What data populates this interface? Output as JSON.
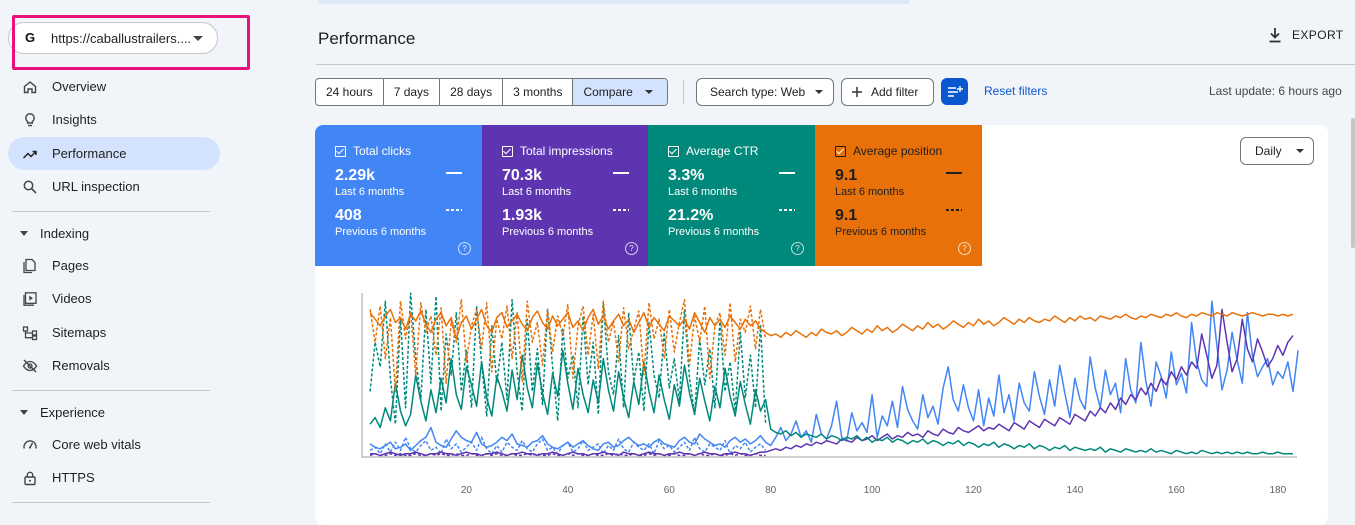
{
  "property": {
    "url": "https://caballustrailers....",
    "logo": "G"
  },
  "sidebar": {
    "items": [
      {
        "label": "Overview",
        "icon": "home-icon"
      },
      {
        "label": "Insights",
        "icon": "lightbulb-icon"
      },
      {
        "label": "Performance",
        "icon": "trending-up-icon",
        "active": true
      },
      {
        "label": "URL inspection",
        "icon": "search-icon"
      }
    ],
    "indexing": {
      "label": "Indexing",
      "items": [
        {
          "label": "Pages",
          "icon": "pages-icon"
        },
        {
          "label": "Videos",
          "icon": "video-icon"
        },
        {
          "label": "Sitemaps",
          "icon": "sitemap-icon"
        },
        {
          "label": "Removals",
          "icon": "eye-off-icon"
        }
      ]
    },
    "experience": {
      "label": "Experience",
      "items": [
        {
          "label": "Core web vitals",
          "icon": "gauge-icon"
        },
        {
          "label": "HTTPS",
          "icon": "lock-icon"
        }
      ]
    }
  },
  "header": {
    "title": "Performance",
    "export_label": "EXPORT"
  },
  "toolbar": {
    "ranges": [
      "24 hours",
      "7 days",
      "28 days",
      "3 months"
    ],
    "compare_label": "Compare",
    "search_type": "Search type: Web",
    "add_filter": "Add filter",
    "reset_filters": "Reset filters",
    "last_update": "Last update: 6 hours ago"
  },
  "metrics": [
    {
      "label": "Total clicks",
      "current": "2.29k",
      "current_period": "Last 6 months",
      "previous": "408",
      "previous_period": "Previous 6 months",
      "color": "#4285f4"
    },
    {
      "label": "Total impressions",
      "current": "70.3k",
      "current_period": "Last 6 months",
      "previous": "1.93k",
      "previous_period": "Previous 6 months",
      "color": "#5e35b1"
    },
    {
      "label": "Average CTR",
      "current": "3.3%",
      "current_period": "Last 6 months",
      "previous": "21.2%",
      "previous_period": "Previous 6 months",
      "color": "#00897b"
    },
    {
      "label": "Average position",
      "current": "9.1",
      "current_period": "Last 6 months",
      "previous": "9.1",
      "previous_period": "Previous 6 months",
      "color": "#e8710a"
    }
  ],
  "granularity": "Daily",
  "chart_data": {
    "type": "line",
    "x_ticks": [
      20,
      40,
      60,
      80,
      100,
      120,
      140,
      160,
      180
    ],
    "xlim": [
      0,
      183
    ],
    "grid": false,
    "series": [
      {
        "color": "#4285f4",
        "style": "solid",
        "values": [
          8,
          6,
          5,
          7,
          9,
          5,
          6,
          8,
          4,
          7,
          10,
          12,
          18,
          9,
          7,
          6,
          11,
          16,
          12,
          10,
          9,
          15,
          8,
          6,
          7,
          9,
          12,
          10,
          14,
          8,
          7,
          6,
          9,
          10,
          13,
          8,
          6,
          5,
          7,
          9,
          6,
          8,
          10,
          7,
          5,
          4,
          8,
          9,
          6,
          7,
          10,
          12,
          9,
          7,
          8,
          6,
          9,
          11,
          8,
          7,
          6,
          10,
          12,
          9,
          8,
          14,
          11,
          9,
          7,
          8,
          6,
          10,
          12,
          9,
          11,
          8,
          10,
          13,
          9,
          7,
          12,
          18,
          10,
          14,
          22,
          12,
          16,
          9,
          26,
          14,
          11,
          19,
          34,
          12,
          10,
          27,
          16,
          21,
          15,
          38,
          12,
          25,
          19,
          34,
          18,
          43,
          29,
          22,
          17,
          38,
          24,
          31,
          20,
          42,
          55,
          35,
          28,
          44,
          30,
          22,
          41,
          19,
          36,
          25,
          50,
          27,
          38,
          22,
          45,
          33,
          28,
          52,
          37,
          26,
          47,
          31,
          56,
          39,
          24,
          48,
          35,
          29,
          61,
          42,
          30,
          53,
          38,
          45,
          27,
          60,
          41,
          33,
          70,
          46,
          31,
          58,
          49,
          36,
          64,
          44,
          51,
          39,
          82,
          58,
          47,
          43,
          95,
          68,
          41,
          53,
          76,
          59,
          45,
          88,
          62,
          49,
          55,
          60,
          44,
          52,
          48,
          58,
          40,
          65
        ]
      },
      {
        "color": "#4285f4",
        "style": "dashed",
        "values": [
          4,
          6,
          2,
          8,
          3,
          9,
          4,
          12,
          5,
          3,
          7,
          10,
          4,
          6,
          2,
          11,
          5,
          8,
          3,
          6,
          9,
          4,
          12,
          5,
          2,
          7,
          3,
          9,
          6,
          4,
          10,
          5,
          3,
          8,
          11,
          4,
          6,
          2,
          7,
          9,
          3,
          5,
          10,
          4,
          6,
          8,
          2,
          7,
          4,
          11,
          5,
          3,
          9,
          6,
          4,
          8,
          2,
          10,
          5,
          7,
          3,
          6,
          9,
          4,
          12,
          5,
          3,
          8,
          6,
          4,
          10,
          2,
          7,
          5,
          9,
          3,
          6,
          8,
          4
        ]
      },
      {
        "color": "#5e35b1",
        "style": "solid",
        "values": [
          2,
          2,
          1,
          2,
          3,
          2,
          1,
          2,
          2,
          3,
          2,
          1,
          2,
          2,
          3,
          2,
          2,
          1,
          2,
          3,
          2,
          2,
          1,
          2,
          2,
          3,
          2,
          1,
          2,
          2,
          3,
          2,
          2,
          1,
          2,
          2,
          3,
          2,
          1,
          2,
          3,
          2,
          2,
          1,
          2,
          2,
          3,
          2,
          2,
          1,
          3,
          2,
          2,
          1,
          2,
          3,
          2,
          2,
          1,
          2,
          2,
          3,
          2,
          2,
          1,
          2,
          3,
          2,
          2,
          1,
          2,
          2,
          3,
          2,
          2,
          1,
          2,
          3,
          3,
          4,
          5,
          4,
          6,
          5,
          7,
          6,
          8,
          7,
          9,
          8,
          10,
          9,
          8,
          11,
          10,
          9,
          12,
          10,
          11,
          13,
          10,
          12,
          14,
          11,
          13,
          12,
          15,
          13,
          14,
          12,
          16,
          14,
          13,
          17,
          15,
          14,
          18,
          16,
          15,
          17,
          19,
          16,
          18,
          17,
          20,
          18,
          16,
          21,
          19,
          17,
          22,
          20,
          18,
          23,
          21,
          19,
          24,
          22,
          20,
          26,
          24,
          22,
          28,
          25,
          30,
          27,
          33,
          29,
          36,
          32,
          38,
          35,
          42,
          38,
          45,
          40,
          48,
          44,
          52,
          47,
          55,
          50,
          58,
          54,
          75,
          62,
          48,
          56,
          90,
          70,
          52,
          60,
          84,
          66,
          58,
          72,
          64,
          55,
          60,
          68,
          62,
          70,
          74
        ]
      },
      {
        "color": "#5e35b1",
        "style": "dashed",
        "values": [
          1,
          2,
          1,
          1,
          2,
          1,
          2,
          1,
          1,
          2,
          1,
          1,
          2,
          1,
          2,
          1,
          1,
          2,
          1,
          1,
          2,
          1,
          1,
          2,
          1,
          2,
          1,
          1,
          2,
          1,
          1,
          2,
          1,
          2,
          1,
          1,
          2,
          1,
          1,
          2,
          1,
          2,
          1,
          1,
          2,
          1,
          1,
          2,
          1,
          2,
          1,
          1,
          2,
          1,
          1,
          2,
          1,
          2,
          1,
          1,
          2,
          1,
          1,
          2,
          1,
          2,
          1,
          1,
          2,
          1,
          1,
          2,
          1,
          2,
          1,
          1,
          2,
          1,
          1
        ]
      },
      {
        "color": "#00897b",
        "style": "solid",
        "values": [
          20,
          24,
          18,
          30,
          22,
          45,
          28,
          19,
          26,
          50,
          34,
          22,
          41,
          27,
          48,
          33,
          60,
          38,
          29,
          55,
          44,
          31,
          58,
          36,
          25,
          49,
          40,
          28,
          53,
          35,
          62,
          42,
          30,
          57,
          39,
          26,
          51,
          37,
          65,
          45,
          29,
          54,
          38,
          27,
          47,
          33,
          60,
          41,
          28,
          52,
          36,
          24,
          46,
          32,
          58,
          40,
          27,
          50,
          35,
          23,
          44,
          31,
          56,
          39,
          26,
          48,
          34,
          22,
          43,
          30,
          54,
          37,
          25,
          46,
          32,
          20,
          41,
          28,
          35,
          17,
          15,
          14,
          16,
          13,
          15,
          12,
          14,
          13,
          12,
          14,
          11,
          13,
          12,
          10,
          12,
          11,
          13,
          10,
          12,
          9,
          11,
          10,
          12,
          9,
          11,
          10,
          8,
          10,
          9,
          11,
          8,
          10,
          9,
          7,
          9,
          8,
          10,
          7,
          9,
          8,
          6,
          8,
          7,
          9,
          6,
          8,
          7,
          5,
          7,
          6,
          8,
          5,
          7,
          6,
          4,
          6,
          5,
          7,
          4,
          6,
          5,
          4,
          5,
          4,
          6,
          3,
          5,
          4,
          3,
          5,
          4,
          3,
          4,
          3,
          5,
          3,
          4,
          3,
          2,
          4,
          3,
          2,
          3,
          2,
          4,
          3,
          2,
          3,
          2,
          3,
          2,
          3,
          2,
          3,
          2,
          2,
          3,
          2,
          2,
          3,
          2,
          2,
          2
        ]
      },
      {
        "color": "#00897b",
        "style": "dashed",
        "values": [
          40,
          70,
          55,
          95,
          48,
          20,
          85,
          30,
          100,
          60,
          35,
          90,
          45,
          98,
          28,
          75,
          50,
          88,
          40,
          65,
          30,
          92,
          58,
          25,
          80,
          45,
          70,
          35,
          96,
          52,
          28,
          84,
          40,
          66,
          32,
          90,
          55,
          22,
          78,
          48,
          62,
          30,
          86,
          44,
          70,
          26,
          94,
          52,
          38,
          74,
          30,
          88,
          46,
          64,
          28,
          82,
          50,
          36,
          76,
          42,
          60,
          34,
          90,
          48,
          26,
          72,
          44,
          66,
          30,
          84,
          40,
          58,
          28,
          76,
          36,
          62,
          30,
          80,
          20
        ]
      },
      {
        "color": "#e8710a",
        "style": "solid",
        "values": [
          88,
          84,
          80,
          86,
          90,
          82,
          85,
          78,
          87,
          83,
          89,
          81,
          76,
          84,
          88,
          80,
          85,
          72,
          82,
          86,
          78,
          84,
          90,
          80,
          76,
          85,
          88,
          79,
          83,
          87,
          81,
          77,
          85,
          89,
          82,
          78,
          86,
          80,
          84,
          88,
          79,
          83,
          77,
          85,
          90,
          81,
          86,
          78,
          83,
          87,
          80,
          84,
          76,
          82,
          88,
          79,
          85,
          81,
          77,
          86,
          83,
          80,
          84,
          78,
          88,
          82,
          76,
          85,
          80,
          84,
          79,
          86,
          82,
          78,
          84,
          80,
          83,
          78,
          76,
          74,
          75,
          73,
          76,
          74,
          77,
          75,
          73,
          76,
          74,
          78,
          76,
          75,
          77,
          74,
          76,
          79,
          77,
          75,
          78,
          76,
          80,
          77,
          79,
          76,
          78,
          81,
          79,
          77,
          80,
          78,
          82,
          79,
          81,
          78,
          80,
          83,
          81,
          79,
          82,
          80,
          84,
          81,
          83,
          80,
          82,
          85,
          83,
          81,
          84,
          82,
          85,
          83,
          82,
          84,
          83,
          86,
          84,
          82,
          85,
          83,
          86,
          84,
          85,
          83,
          86,
          85,
          84,
          86,
          85,
          87,
          85,
          84,
          86,
          85,
          87,
          86,
          85,
          87,
          86,
          88,
          86,
          85,
          87,
          86,
          88,
          87,
          86,
          88,
          87,
          86,
          88,
          87,
          86,
          87,
          88,
          87,
          86,
          87,
          87,
          86,
          87,
          86,
          87
        ]
      },
      {
        "color": "#e8710a",
        "style": "dashed",
        "values": [
          90,
          70,
          92,
          60,
          85,
          40,
          95,
          72,
          88,
          50,
          94,
          76,
          86,
          62,
          91,
          45,
          83,
          70,
          96,
          58,
          80,
          90,
          66,
          94,
          52,
          84,
          72,
          92,
          60,
          88,
          46,
          95,
          70,
          82,
          56,
          90,
          64,
          86,
          74,
          93,
          48,
          80,
          92,
          62,
          87,
          54,
          95,
          70,
          83,
          58,
          91,
          66,
          78,
          89,
          50,
          94,
          72,
          84,
          60,
          90,
          64,
          82,
          96,
          56,
          86,
          70,
          92,
          48,
          80,
          88,
          62,
          94,
          58,
          84,
          76,
          92,
          66,
          90,
          72
        ]
      }
    ]
  }
}
